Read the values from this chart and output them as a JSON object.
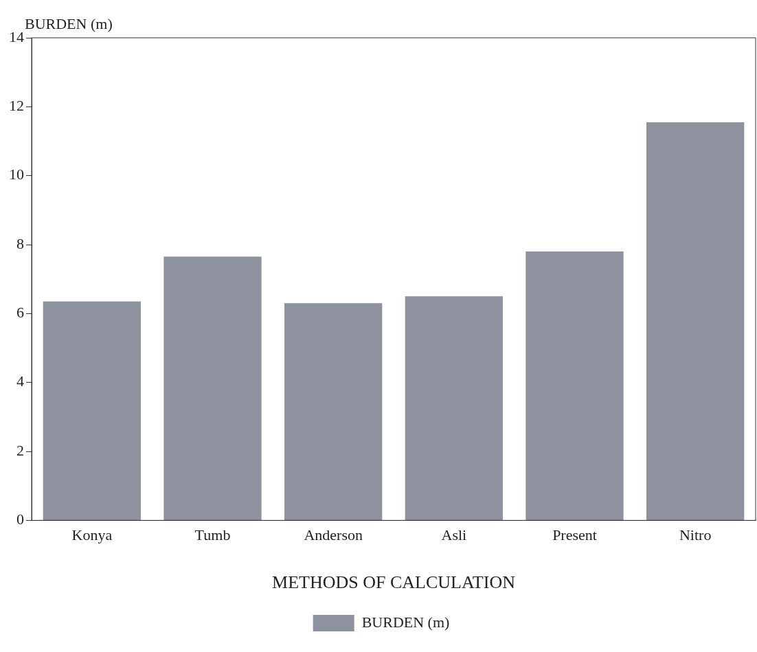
{
  "chart_data": {
    "type": "bar",
    "ylabel": "BURDEN (m)",
    "xlabel": "METHODS OF CALCULATION",
    "categories": [
      "Konya",
      "Tumb",
      "Anderson",
      "Asli",
      "Present",
      "Nitro"
    ],
    "series": [
      {
        "name": "BURDEN (m)",
        "color": "#8e929e",
        "values": [
          6.35,
          7.65,
          6.3,
          6.5,
          7.8,
          11.55
        ]
      }
    ],
    "ylim": [
      0,
      14
    ],
    "yticks": [
      0,
      2,
      4,
      6,
      8,
      10,
      12,
      14
    ],
    "grid": false,
    "legend": "bottom"
  }
}
